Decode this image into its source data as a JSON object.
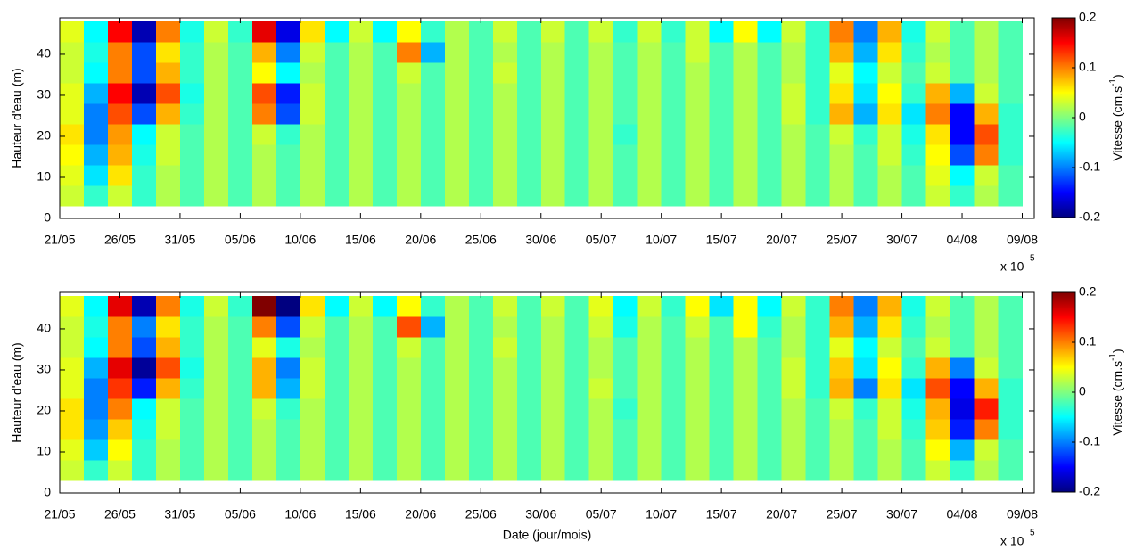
{
  "chart_data": [
    {
      "type": "heatmap",
      "colormap": "jet",
      "ylabel": "Hauteur d'eau (m)",
      "x_multiplier": "x 10",
      "x_multiplier_exponent": "5",
      "xlim": [
        0,
        81
      ],
      "ylim": [
        0,
        48.9
      ],
      "xticks": [
        {
          "value": 0,
          "label": "21/05"
        },
        {
          "value": 5,
          "label": "26/05"
        },
        {
          "value": 10,
          "label": "31/05"
        },
        {
          "value": 15,
          "label": "05/06"
        },
        {
          "value": 20,
          "label": "10/06"
        },
        {
          "value": 25,
          "label": "15/06"
        },
        {
          "value": 30,
          "label": "20/06"
        },
        {
          "value": 35,
          "label": "25/06"
        },
        {
          "value": 40,
          "label": "30/06"
        },
        {
          "value": 45,
          "label": "05/07"
        },
        {
          "value": 50,
          "label": "10/07"
        },
        {
          "value": 55,
          "label": "15/07"
        },
        {
          "value": 60,
          "label": "20/07"
        },
        {
          "value": 65,
          "label": "25/07"
        },
        {
          "value": 70,
          "label": "30/07"
        },
        {
          "value": 75,
          "label": "04/08"
        },
        {
          "value": 80,
          "label": "09/08"
        }
      ],
      "yticks": [
        0,
        10,
        20,
        30,
        40
      ],
      "x": [
        1,
        3,
        5,
        7,
        9,
        11,
        13,
        15,
        17,
        19,
        21,
        23,
        25,
        27,
        29,
        31,
        33,
        35,
        37,
        39,
        41,
        43,
        45,
        47,
        49,
        51,
        53,
        55,
        57,
        59,
        61,
        63,
        65,
        67,
        69,
        71,
        73,
        75,
        77,
        79
      ],
      "y": [
        5.5,
        10.5,
        15.5,
        20.5,
        25.5,
        30.5,
        35.5,
        40.5,
        45.5
      ],
      "z": [
        [
          0.03,
          -0.03,
          0.03,
          -0.03,
          0.02,
          -0.02,
          0.02,
          -0.02,
          0.02,
          -0.02,
          0.02,
          -0.02,
          0.02,
          -0.02,
          0.02,
          -0.02,
          0.02,
          -0.02,
          0.02,
          -0.02,
          0.02,
          -0.02,
          0.02,
          -0.02,
          0.02,
          -0.02,
          0.02,
          -0.02,
          0.02,
          -0.02,
          0.02,
          -0.02,
          0.02,
          -0.02,
          0.02,
          -0.02,
          0.03,
          -0.03,
          0.02,
          -0.02
        ],
        [
          0.04,
          -0.06,
          0.06,
          -0.03,
          0.02,
          -0.02,
          0.02,
          -0.02,
          0.02,
          -0.02,
          0.02,
          -0.02,
          0.02,
          -0.02,
          0.02,
          -0.02,
          0.02,
          -0.02,
          0.02,
          -0.02,
          0.02,
          -0.02,
          0.02,
          -0.02,
          0.02,
          -0.02,
          0.02,
          -0.02,
          0.02,
          -0.02,
          0.02,
          -0.02,
          0.02,
          -0.02,
          0.02,
          -0.02,
          0.04,
          -0.05,
          0.03,
          -0.02
        ],
        [
          0.05,
          -0.08,
          0.08,
          -0.04,
          0.03,
          -0.02,
          0.02,
          -0.02,
          0.02,
          -0.02,
          0.02,
          -0.02,
          0.02,
          -0.02,
          0.02,
          -0.02,
          0.02,
          -0.02,
          0.02,
          -0.02,
          0.02,
          -0.02,
          0.02,
          -0.02,
          0.02,
          -0.02,
          0.02,
          -0.02,
          0.02,
          -0.02,
          0.02,
          -0.02,
          0.02,
          -0.02,
          0.03,
          -0.03,
          0.05,
          -0.12,
          0.1,
          -0.03
        ],
        [
          0.06,
          -0.1,
          0.09,
          -0.05,
          0.03,
          -0.02,
          0.02,
          -0.02,
          0.03,
          -0.03,
          0.02,
          -0.02,
          0.02,
          -0.02,
          0.02,
          -0.02,
          0.02,
          -0.02,
          0.02,
          -0.02,
          0.02,
          -0.02,
          0.02,
          -0.03,
          0.02,
          -0.02,
          0.02,
          -0.02,
          0.02,
          -0.02,
          0.02,
          -0.02,
          0.03,
          -0.03,
          0.03,
          -0.04,
          0.06,
          -0.15,
          0.12,
          -0.03
        ],
        [
          0.04,
          -0.1,
          0.12,
          -0.12,
          0.08,
          -0.03,
          0.02,
          -0.02,
          0.1,
          -0.12,
          0.03,
          -0.02,
          0.02,
          -0.02,
          0.02,
          -0.02,
          0.02,
          -0.02,
          0.02,
          -0.02,
          0.02,
          -0.02,
          0.02,
          -0.02,
          0.02,
          -0.02,
          0.02,
          -0.02,
          0.02,
          -0.02,
          0.03,
          -0.03,
          0.08,
          -0.08,
          0.06,
          -0.06,
          0.1,
          -0.15,
          0.08,
          -0.03
        ],
        [
          0.04,
          -0.08,
          0.15,
          -0.18,
          0.12,
          -0.04,
          0.02,
          -0.02,
          0.12,
          -0.14,
          0.03,
          -0.02,
          0.02,
          -0.02,
          0.02,
          -0.02,
          0.02,
          -0.02,
          0.02,
          -0.02,
          0.02,
          -0.02,
          0.02,
          -0.02,
          0.02,
          -0.02,
          0.02,
          -0.02,
          0.02,
          -0.02,
          0.03,
          -0.03,
          0.06,
          -0.06,
          0.05,
          -0.03,
          0.08,
          -0.08,
          0.03,
          -0.02
        ],
        [
          0.03,
          -0.05,
          0.1,
          -0.12,
          0.08,
          -0.03,
          0.02,
          -0.02,
          0.05,
          -0.05,
          0.02,
          -0.02,
          0.02,
          -0.02,
          0.03,
          -0.02,
          0.02,
          -0.02,
          0.03,
          -0.02,
          0.02,
          -0.02,
          0.02,
          -0.02,
          0.02,
          -0.02,
          0.02,
          -0.02,
          0.02,
          -0.02,
          0.02,
          -0.03,
          0.04,
          -0.05,
          0.03,
          -0.02,
          0.03,
          -0.02,
          0.02,
          -0.02
        ],
        [
          0.03,
          -0.04,
          0.1,
          -0.12,
          0.06,
          -0.03,
          0.02,
          -0.02,
          0.08,
          -0.1,
          0.03,
          -0.02,
          0.02,
          -0.02,
          0.1,
          -0.08,
          0.02,
          -0.02,
          0.02,
          -0.02,
          0.02,
          -0.02,
          0.02,
          -0.02,
          0.02,
          -0.02,
          0.03,
          -0.02,
          0.02,
          -0.02,
          0.02,
          -0.03,
          0.08,
          -0.08,
          0.06,
          -0.03,
          0.02,
          -0.02,
          0.02,
          -0.02
        ],
        [
          0.04,
          -0.05,
          0.15,
          -0.18,
          0.1,
          -0.04,
          0.03,
          -0.03,
          0.16,
          -0.16,
          0.06,
          -0.05,
          0.03,
          -0.05,
          0.05,
          -0.03,
          0.02,
          -0.02,
          0.03,
          -0.02,
          0.03,
          -0.02,
          0.03,
          -0.03,
          0.03,
          -0.03,
          0.03,
          -0.05,
          0.05,
          -0.05,
          0.03,
          -0.03,
          0.1,
          -0.1,
          0.08,
          -0.04,
          0.03,
          -0.02,
          0.02,
          -0.02
        ]
      ],
      "clim": [
        -0.2,
        0.2
      ],
      "cticks": [
        -0.2,
        -0.1,
        0,
        0.1,
        0.2
      ],
      "clabel": "Vitesse (cm.s",
      "clabel_superscript": "-1",
      "clabel_end": ")"
    },
    {
      "type": "heatmap",
      "colormap": "jet",
      "ylabel": "Hauteur d'eau (m)",
      "xlabel": "Date (jour/mois)",
      "x_multiplier": "x 10",
      "x_multiplier_exponent": "5",
      "xlim": [
        0,
        81
      ],
      "ylim": [
        0,
        48.9
      ],
      "xticks": [
        {
          "value": 0,
          "label": "21/05"
        },
        {
          "value": 5,
          "label": "26/05"
        },
        {
          "value": 10,
          "label": "31/05"
        },
        {
          "value": 15,
          "label": "05/06"
        },
        {
          "value": 20,
          "label": "10/06"
        },
        {
          "value": 25,
          "label": "15/06"
        },
        {
          "value": 30,
          "label": "20/06"
        },
        {
          "value": 35,
          "label": "25/06"
        },
        {
          "value": 40,
          "label": "30/06"
        },
        {
          "value": 45,
          "label": "05/07"
        },
        {
          "value": 50,
          "label": "10/07"
        },
        {
          "value": 55,
          "label": "15/07"
        },
        {
          "value": 60,
          "label": "20/07"
        },
        {
          "value": 65,
          "label": "25/07"
        },
        {
          "value": 70,
          "label": "30/07"
        },
        {
          "value": 75,
          "label": "04/08"
        },
        {
          "value": 80,
          "label": "09/08"
        }
      ],
      "yticks": [
        0,
        10,
        20,
        30,
        40
      ],
      "x": [
        1,
        3,
        5,
        7,
        9,
        11,
        13,
        15,
        17,
        19,
        21,
        23,
        25,
        27,
        29,
        31,
        33,
        35,
        37,
        39,
        41,
        43,
        45,
        47,
        49,
        51,
        53,
        55,
        57,
        59,
        61,
        63,
        65,
        67,
        69,
        71,
        73,
        75,
        77,
        79
      ],
      "y": [
        5.5,
        10.5,
        15.5,
        20.5,
        25.5,
        30.5,
        35.5,
        40.5,
        45.5
      ],
      "z": [
        [
          0.03,
          -0.03,
          0.03,
          -0.03,
          0.02,
          -0.02,
          0.02,
          -0.02,
          0.02,
          -0.02,
          0.02,
          -0.02,
          0.02,
          -0.02,
          0.02,
          -0.02,
          0.02,
          -0.02,
          0.02,
          -0.02,
          0.02,
          -0.02,
          0.02,
          -0.02,
          0.02,
          -0.02,
          0.02,
          -0.02,
          0.02,
          -0.02,
          0.02,
          -0.02,
          0.02,
          -0.02,
          0.02,
          -0.02,
          0.03,
          -0.03,
          0.02,
          -0.02
        ],
        [
          0.04,
          -0.07,
          0.05,
          -0.03,
          0.02,
          -0.02,
          0.02,
          -0.02,
          0.02,
          -0.02,
          0.02,
          -0.02,
          0.02,
          -0.02,
          0.02,
          -0.02,
          0.02,
          -0.02,
          0.02,
          -0.02,
          0.02,
          -0.02,
          0.02,
          -0.02,
          0.02,
          -0.02,
          0.02,
          -0.02,
          0.02,
          -0.02,
          0.02,
          -0.02,
          0.02,
          -0.02,
          0.02,
          -0.02,
          0.05,
          -0.08,
          0.03,
          -0.02
        ],
        [
          0.06,
          -0.09,
          0.07,
          -0.04,
          0.03,
          -0.02,
          0.02,
          -0.02,
          0.02,
          -0.02,
          0.02,
          -0.02,
          0.02,
          -0.02,
          0.02,
          -0.02,
          0.02,
          -0.02,
          0.02,
          -0.02,
          0.02,
          -0.02,
          0.02,
          -0.02,
          0.02,
          -0.02,
          0.02,
          -0.02,
          0.02,
          -0.02,
          0.02,
          -0.02,
          0.02,
          -0.02,
          0.03,
          -0.03,
          0.07,
          -0.14,
          0.1,
          -0.03
        ],
        [
          0.06,
          -0.1,
          0.1,
          -0.05,
          0.03,
          -0.02,
          0.02,
          -0.02,
          0.03,
          -0.03,
          0.02,
          -0.02,
          0.02,
          -0.02,
          0.02,
          -0.02,
          0.02,
          -0.02,
          0.02,
          -0.02,
          0.02,
          -0.02,
          0.02,
          -0.03,
          0.02,
          -0.02,
          0.02,
          -0.02,
          0.02,
          -0.02,
          0.02,
          -0.02,
          0.03,
          -0.03,
          0.03,
          -0.04,
          0.08,
          -0.16,
          0.14,
          -0.03
        ],
        [
          0.04,
          -0.1,
          0.13,
          -0.14,
          0.08,
          -0.03,
          0.02,
          -0.02,
          0.08,
          -0.08,
          0.03,
          -0.02,
          0.02,
          -0.02,
          0.02,
          -0.02,
          0.02,
          -0.02,
          0.02,
          -0.02,
          0.02,
          -0.02,
          0.03,
          -0.02,
          0.02,
          -0.02,
          0.02,
          -0.02,
          0.02,
          -0.02,
          0.03,
          -0.03,
          0.08,
          -0.1,
          0.06,
          -0.06,
          0.12,
          -0.15,
          0.08,
          -0.03
        ],
        [
          0.04,
          -0.08,
          0.16,
          -0.19,
          0.12,
          -0.04,
          0.02,
          -0.02,
          0.08,
          -0.1,
          0.03,
          -0.02,
          0.02,
          -0.02,
          0.02,
          -0.02,
          0.02,
          -0.02,
          0.02,
          -0.02,
          0.02,
          -0.02,
          0.02,
          -0.02,
          0.02,
          -0.02,
          0.02,
          -0.02,
          0.02,
          -0.02,
          0.03,
          -0.03,
          0.07,
          -0.06,
          0.05,
          -0.03,
          0.08,
          -0.1,
          0.03,
          -0.02
        ],
        [
          0.03,
          -0.05,
          0.1,
          -0.12,
          0.08,
          -0.03,
          0.02,
          -0.02,
          0.04,
          -0.04,
          0.02,
          -0.02,
          0.02,
          -0.02,
          0.03,
          -0.02,
          0.02,
          -0.02,
          0.03,
          -0.02,
          0.02,
          -0.02,
          0.02,
          -0.02,
          0.02,
          -0.02,
          0.02,
          -0.02,
          0.02,
          -0.02,
          0.02,
          -0.03,
          0.04,
          -0.05,
          0.03,
          -0.02,
          0.03,
          -0.02,
          0.02,
          -0.02
        ],
        [
          0.03,
          -0.04,
          0.1,
          -0.1,
          0.06,
          -0.03,
          0.02,
          -0.02,
          0.1,
          -0.12,
          0.03,
          -0.02,
          0.02,
          -0.02,
          0.12,
          -0.08,
          0.02,
          -0.02,
          0.02,
          -0.02,
          0.02,
          -0.02,
          0.03,
          -0.04,
          0.02,
          -0.02,
          0.03,
          -0.02,
          0.05,
          -0.03,
          0.02,
          -0.03,
          0.08,
          -0.08,
          0.06,
          -0.03,
          0.02,
          -0.02,
          0.02,
          -0.02
        ],
        [
          0.04,
          -0.05,
          0.16,
          -0.18,
          0.1,
          -0.04,
          0.03,
          -0.03,
          0.2,
          -0.2,
          0.06,
          -0.05,
          0.03,
          -0.05,
          0.05,
          -0.03,
          0.02,
          -0.02,
          0.03,
          -0.02,
          0.03,
          -0.02,
          0.04,
          -0.05,
          0.03,
          -0.03,
          0.05,
          -0.06,
          0.05,
          -0.05,
          0.03,
          -0.03,
          0.1,
          -0.1,
          0.08,
          -0.04,
          0.03,
          -0.02,
          0.02,
          -0.02
        ]
      ],
      "clim": [
        -0.2,
        0.2
      ],
      "cticks": [
        -0.2,
        -0.1,
        0,
        0.1,
        0.2
      ],
      "clabel": "Vitesse (cm.s",
      "clabel_superscript": "-1",
      "clabel_end": ")"
    }
  ]
}
